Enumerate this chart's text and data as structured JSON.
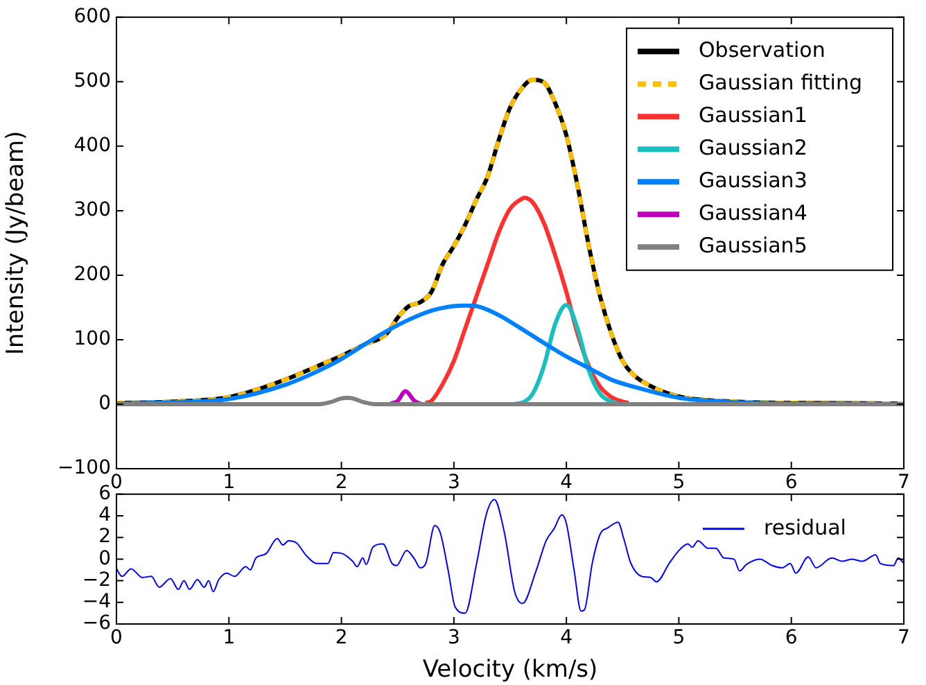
{
  "chart_data": [
    {
      "type": "line",
      "ylabel": "Intensity (Jy/beam)",
      "xlim": [
        0,
        7
      ],
      "xticks": [
        0,
        1,
        2,
        3,
        4,
        5,
        6,
        7
      ],
      "ylim": [
        -100,
        600
      ],
      "yticks": [
        -100,
        0,
        100,
        200,
        300,
        400,
        500,
        600
      ],
      "grid": false,
      "legend": "top right",
      "marker": "none",
      "series": [
        {
          "name": "Observation",
          "color": "#000000",
          "x": [
            0,
            0.5,
            1,
            1.5,
            1.8,
            2.0,
            2.2,
            2.4,
            2.5,
            2.6,
            2.7,
            2.8,
            2.9,
            3.0,
            3.1,
            3.2,
            3.3,
            3.4,
            3.5,
            3.6,
            3.7,
            3.8,
            3.9,
            4.0,
            4.1,
            4.2,
            4.3,
            4.4,
            4.5,
            4.6,
            4.75,
            5,
            5.5,
            6,
            7
          ],
          "values": [
            2,
            4,
            11,
            38,
            60,
            75,
            92,
            109,
            134,
            152,
            158,
            174,
            217,
            245,
            278,
            317,
            353,
            410,
            460,
            489,
            503,
            499,
            467,
            417,
            338,
            245,
            167,
            109,
            67,
            45,
            28,
            12,
            4,
            2,
            1
          ]
        },
        {
          "name": "Gaussian fitting",
          "color": "#ffbf00",
          "line_style": "dashed",
          "x": [
            0,
            0.5,
            1,
            1.5,
            1.8,
            2.0,
            2.2,
            2.4,
            2.5,
            2.6,
            2.7,
            2.8,
            2.9,
            3.0,
            3.1,
            3.2,
            3.3,
            3.4,
            3.5,
            3.6,
            3.7,
            3.8,
            3.9,
            4.0,
            4.1,
            4.2,
            4.3,
            4.4,
            4.5,
            4.6,
            4.75,
            5,
            5.5,
            6,
            7
          ],
          "values": [
            2,
            4,
            11,
            38,
            60,
            75,
            92,
            109,
            134,
            152,
            158,
            174,
            217,
            245,
            278,
            317,
            353,
            410,
            460,
            489,
            503,
            499,
            467,
            417,
            338,
            245,
            167,
            109,
            67,
            45,
            28,
            12,
            4,
            2,
            1
          ]
        },
        {
          "name": "Gaussian1",
          "color": "#ff3030",
          "x": [
            2.75,
            2.8,
            2.9,
            3.0,
            3.1,
            3.2,
            3.3,
            3.4,
            3.5,
            3.6,
            3.63,
            3.7,
            3.8,
            3.9,
            4.0,
            4.1,
            4.2,
            4.3,
            4.4,
            4.5,
            4.55
          ],
          "values": [
            2,
            5,
            31,
            67,
            117,
            167,
            217,
            267,
            303,
            318,
            320,
            313,
            281,
            231,
            174,
            109,
            59,
            27,
            11,
            4,
            2
          ]
        },
        {
          "name": "Gaussian2",
          "color": "#19bfbf",
          "x": [
            3.55,
            3.6,
            3.7,
            3.8,
            3.9,
            4.0,
            4.1,
            4.2,
            4.3,
            4.4,
            4.45
          ],
          "values": [
            1,
            2,
            16,
            59,
            124,
            154,
            117,
            52,
            16,
            4,
            2
          ]
        },
        {
          "name": "Gaussian3",
          "color": "#0080ff",
          "x": [
            0,
            0.5,
            1,
            1.5,
            1.8,
            2.0,
            2.2,
            2.4,
            2.6,
            2.8,
            3.0,
            3.1,
            3.2,
            3.4,
            3.6,
            3.8,
            4.0,
            4.2,
            4.4,
            4.6,
            5,
            5.5,
            6,
            7
          ],
          "values": [
            1,
            3,
            8,
            30,
            52,
            70,
            92,
            113,
            131,
            145,
            152,
            153,
            152,
            138,
            117,
            95,
            74,
            56,
            38,
            27,
            10,
            3,
            1,
            0
          ]
        },
        {
          "name": "Gaussian4",
          "color": "#bf00bf",
          "x": [
            2.44,
            2.5,
            2.57,
            2.65,
            2.7
          ],
          "values": [
            1,
            5,
            20,
            5,
            1
          ]
        },
        {
          "name": "Gaussian5",
          "color": "#808080",
          "x": [
            0,
            1.8,
            1.9,
            2.0,
            2.05,
            2.1,
            2.2,
            2.3,
            7
          ],
          "values": [
            0,
            0,
            3,
            9,
            10,
            9,
            3,
            0,
            0
          ]
        }
      ]
    },
    {
      "type": "line",
      "xlabel": "Velocity (km/s)",
      "xlim": [
        0,
        7
      ],
      "xticks": [
        0,
        1,
        2,
        3,
        4,
        5,
        6,
        7
      ],
      "ylim": [
        -6,
        6
      ],
      "yticks": [
        -6,
        -4,
        -2,
        0,
        2,
        4,
        6
      ],
      "grid": false,
      "legend": "top right",
      "marker": "none",
      "series": [
        {
          "name": "residual",
          "color": "#0000ff",
          "x": [
            0,
            0.05,
            0.13,
            0.23,
            0.31,
            0.38,
            0.48,
            0.55,
            0.6,
            0.65,
            0.72,
            0.78,
            0.82,
            0.86,
            0.91,
            0.98,
            1.05,
            1.15,
            1.19,
            1.24,
            1.33,
            1.43,
            1.48,
            1.53,
            1.6,
            1.69,
            1.78,
            1.88,
            1.93,
            2.01,
            2.1,
            2.14,
            2.19,
            2.22,
            2.28,
            2.37,
            2.45,
            2.49,
            2.58,
            2.65,
            2.7,
            2.75,
            2.83,
            2.88,
            2.95,
            3.01,
            3.1,
            3.2,
            3.29,
            3.36,
            3.45,
            3.54,
            3.61,
            3.73,
            3.82,
            3.89,
            3.96,
            4.0,
            4.07,
            4.13,
            4.16,
            4.23,
            4.3,
            4.37,
            4.46,
            4.51,
            4.57,
            4.67,
            4.75,
            4.8,
            4.92,
            5.01,
            5.08,
            5.12,
            5.17,
            5.26,
            5.33,
            5.4,
            5.49,
            5.54,
            5.6,
            5.72,
            5.83,
            5.92,
            5.99,
            6.04,
            6.15,
            6.22,
            6.36,
            6.45,
            6.54,
            6.63,
            6.75,
            6.79,
            6.91,
            6.95,
            7.0
          ],
          "values": [
            -0.9,
            -1.6,
            -0.9,
            -1.7,
            -1.6,
            -2.6,
            -1.8,
            -2.8,
            -2.0,
            -2.8,
            -1.9,
            -2.6,
            -2.0,
            -3.0,
            -1.9,
            -1.3,
            -1.6,
            -0.7,
            -1.0,
            0.1,
            0.5,
            1.9,
            1.3,
            1.7,
            1.5,
            0.3,
            -0.4,
            -0.4,
            0.6,
            0.5,
            -0.2,
            -0.7,
            0.1,
            -0.5,
            1.1,
            1.4,
            -0.4,
            -0.6,
            0.8,
            0,
            -0.8,
            -0.4,
            3.1,
            2.4,
            -1.1,
            -4.4,
            -5.0,
            -0.5,
            4.2,
            5.5,
            2.4,
            -3.0,
            -4.1,
            -1.1,
            1.7,
            2.8,
            4.1,
            3.3,
            -1.1,
            -4.8,
            -4.7,
            -0.4,
            2.3,
            2.9,
            3.4,
            1.9,
            -0.3,
            -1.6,
            -1.7,
            -2.1,
            -0.3,
            0.9,
            1.4,
            1.1,
            1.7,
            1.0,
            1.0,
            0.1,
            0,
            -1.1,
            -0.5,
            0,
            -0.6,
            -0.8,
            -0.4,
            -1.3,
            0.2,
            -0.8,
            0.1,
            -0.2,
            0,
            -0.2,
            0.4,
            -0.4,
            -0.6,
            0.1,
            -0.4
          ]
        }
      ]
    }
  ]
}
